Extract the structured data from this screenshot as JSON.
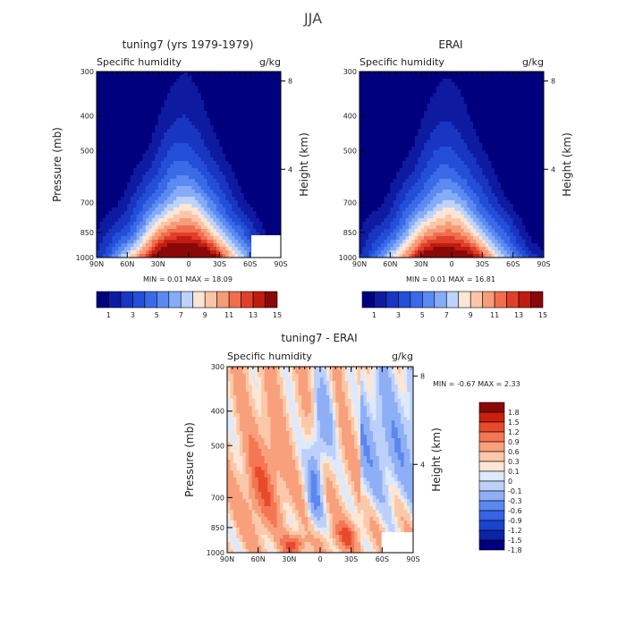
{
  "figure": {
    "title": "JJA"
  },
  "palettes": {
    "full": [
      "#00007f",
      "#0e1ba0",
      "#1936c2",
      "#234fd8",
      "#3b6ae8",
      "#5b8af2",
      "#86acf7",
      "#bdd3fb",
      "#fbe6d6",
      "#fbc6a8",
      "#f79c78",
      "#f06e4e",
      "#e0402a",
      "#c01c10",
      "#8a0808"
    ],
    "diff": [
      "#00007f",
      "#0b24a8",
      "#1a44cf",
      "#3564e6",
      "#5c87f0",
      "#8eaff6",
      "#bcd0fa",
      "#dde9fc",
      "#fde6d4",
      "#fbc8a9",
      "#f8a07c",
      "#f47652",
      "#e64b2c",
      "#c8200f",
      "#8a0808"
    ]
  },
  "labels": {
    "pressure": "Pressure (mb)",
    "height": "Height (km)",
    "subtitle_left": "Specific humidity",
    "units": "g/kg"
  },
  "chart_data": [
    {
      "id": "model",
      "type": "contour",
      "title": "tuning7 (yrs 1979-1979)",
      "subtitle": "Specific humidity",
      "units": "g/kg",
      "ylabel": "Pressure (mb)",
      "y2label": "Height (km)",
      "x_ticks": [
        "90N",
        "60N",
        "30N",
        "0",
        "30S",
        "60S",
        "90S"
      ],
      "y_ticks": [
        "300",
        "400",
        "500",
        "700",
        "850",
        "1000"
      ],
      "y2_ticks": [
        "8",
        "4"
      ],
      "stats": "MIN =   0.01   MAX =   18.09",
      "min": 0.01,
      "max": 18.09,
      "colorbar_labels": [
        "1",
        "3",
        "5",
        "7",
        "9",
        "11",
        "13",
        "15"
      ],
      "center_lat": 5,
      "peak": 18.09
    },
    {
      "id": "obs",
      "type": "contour",
      "title": "ERAI",
      "subtitle": "Specific humidity",
      "units": "g/kg",
      "ylabel": "Pressure (mb)",
      "y2label": "Height (km)",
      "x_ticks": [
        "90N",
        "60N",
        "30N",
        "0",
        "30S",
        "60S",
        "90S"
      ],
      "y_ticks": [
        "300",
        "400",
        "500",
        "700",
        "850",
        "1000"
      ],
      "y2_ticks": [
        "8",
        "4"
      ],
      "stats": "MIN =   0.01   MAX =   16.81",
      "min": 0.01,
      "max": 16.81,
      "colorbar_labels": [
        "1",
        "3",
        "5",
        "7",
        "9",
        "11",
        "13",
        "15"
      ],
      "center_lat": 5,
      "peak": 16.81
    },
    {
      "id": "diff",
      "type": "contour",
      "title": "tuning7 - ERAI",
      "subtitle": "Specific humidity",
      "units": "g/kg",
      "ylabel": "Pressure (mb)",
      "y2label": "Height (km)",
      "x_ticks": [
        "90N",
        "60N",
        "30N",
        "0",
        "30S",
        "60S",
        "90S"
      ],
      "y_ticks": [
        "300",
        "400",
        "500",
        "700",
        "850",
        "1000"
      ],
      "y2_ticks": [
        "8",
        "4"
      ],
      "stats": "MIN =   -0.67   MAX =   2.33",
      "min": -0.67,
      "max": 2.33,
      "colorbar_labels": [
        "1.8",
        "1.5",
        "1.2",
        "0.9",
        "0.6",
        "0.3",
        "0.1",
        "0",
        "-0.1",
        "-0.3",
        "-0.6",
        "-0.9",
        "-1.2",
        "-1.5",
        "-1.8"
      ]
    }
  ]
}
